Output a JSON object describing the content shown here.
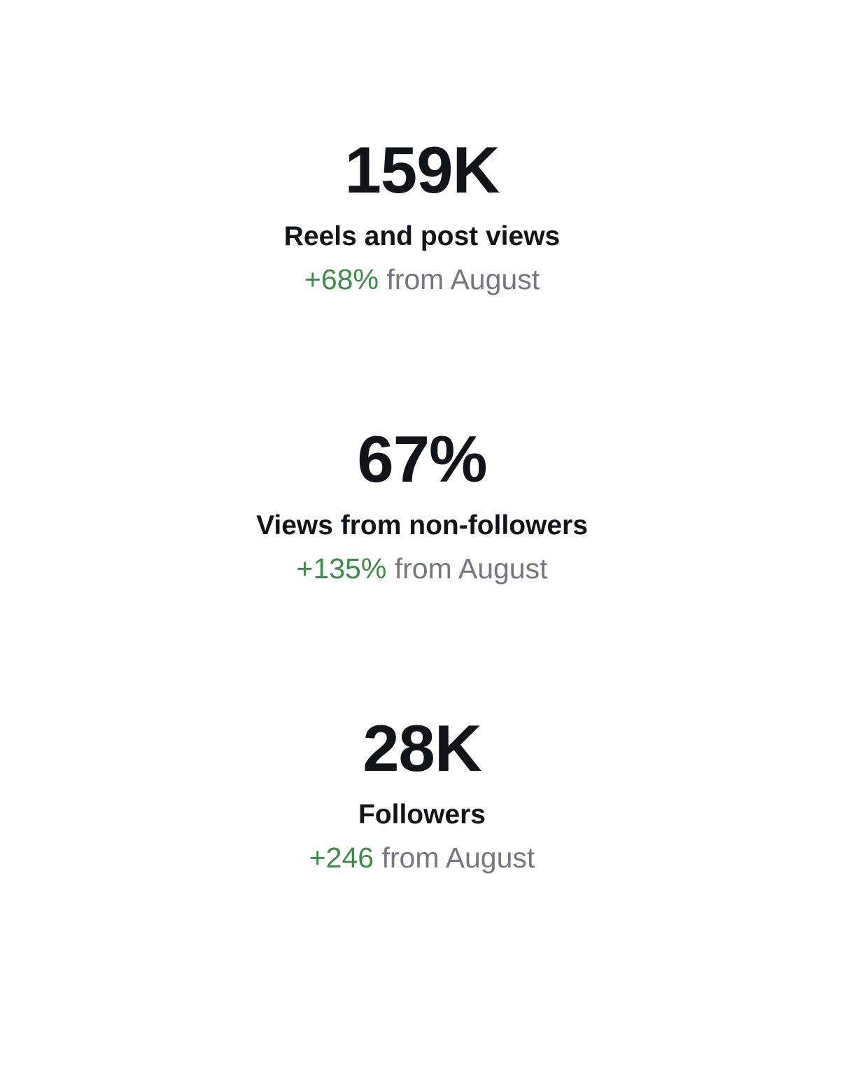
{
  "stats": [
    {
      "value": "159K",
      "label": "Reels and post views",
      "change": "+68%",
      "change_suffix": "from August"
    },
    {
      "value": "67%",
      "label": "Views from non-followers",
      "change": "+135%",
      "change_suffix": "from August"
    },
    {
      "value": "28K",
      "label": "Followers",
      "change": "+246",
      "change_suffix": "from August"
    }
  ],
  "colors": {
    "background": "#ffffff",
    "text_primary": "#111418",
    "positive_change": "#3e8a4a",
    "secondary_text": "#737880"
  }
}
